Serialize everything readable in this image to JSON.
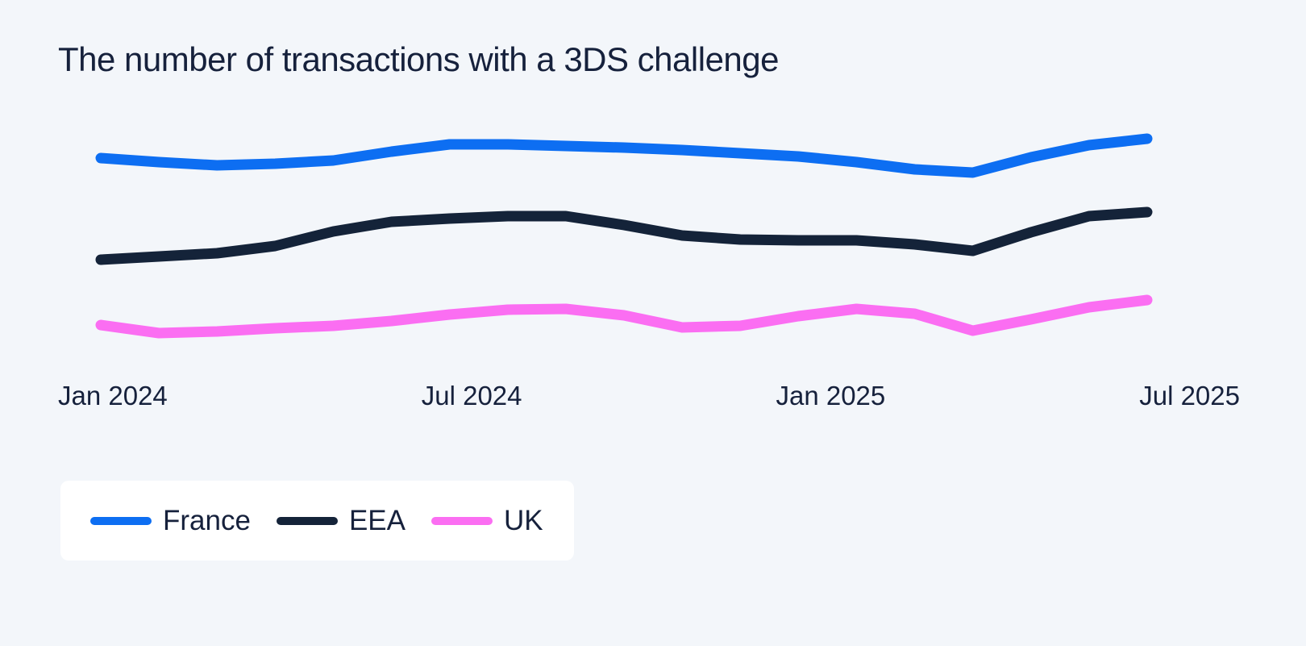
{
  "page": {
    "background_color": "#f3f6fa",
    "text_color": "#16213c"
  },
  "title": "The number of transactions with a 3DS challenge",
  "x_axis": {
    "tick_labels": [
      "Jan 2024",
      "Jul 2024",
      "Jan 2025",
      "Jul 2025"
    ]
  },
  "legend": {
    "position": "bottom-left",
    "items": [
      {
        "label": "France",
        "color": "#0d6ef2"
      },
      {
        "label": "EEA",
        "color": "#142339"
      },
      {
        "label": "UK",
        "color": "#fb6ef2"
      }
    ]
  },
  "chart_data": {
    "type": "line",
    "title": "The number of transactions with a 3DS challenge",
    "x": [
      "Jan 2024",
      "Feb 2024",
      "Mar 2024",
      "Apr 2024",
      "May 2024",
      "Jun 2024",
      "Jul 2024",
      "Aug 2024",
      "Sep 2024",
      "Oct 2024",
      "Nov 2024",
      "Dec 2024",
      "Jan 2025",
      "Feb 2025",
      "Mar 2025",
      "Apr 2025",
      "May 2025",
      "Jun 2025",
      "Jul 2025"
    ],
    "x_tick_labels_shown": [
      "Jan 2024",
      "Jul 2024",
      "Jan 2025",
      "Jul 2025"
    ],
    "series": [
      {
        "name": "France",
        "color": "#0d6ef2",
        "values": [
          244,
          239,
          235,
          237,
          241,
          252,
          261,
          261,
          259,
          257,
          254,
          250,
          246,
          239,
          230,
          226,
          245,
          260,
          268
        ]
      },
      {
        "name": "EEA",
        "color": "#142339",
        "values": [
          118,
          122,
          126,
          135,
          153,
          165,
          169,
          172,
          172,
          161,
          148,
          143,
          142,
          142,
          137,
          129,
          152,
          172,
          177
        ]
      },
      {
        "name": "UK",
        "color": "#fb6ef2",
        "values": [
          37,
          27,
          29,
          33,
          36,
          42,
          50,
          56,
          57,
          49,
          34,
          36,
          48,
          57,
          51,
          30,
          44,
          59,
          68
        ]
      }
    ],
    "xlabel": "",
    "ylabel": "",
    "y_axis_visible": false,
    "y_unit": "relative level (no y-axis shown in chart)",
    "ylim": [
      0,
      300
    ],
    "grid": false,
    "legend_position": "bottom-left"
  }
}
